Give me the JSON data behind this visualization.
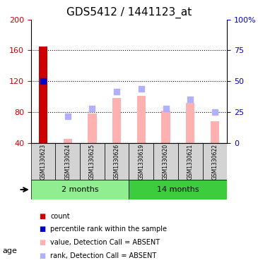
{
  "title": "GDS5412 / 1441123_at",
  "samples": [
    "GSM1330623",
    "GSM1330624",
    "GSM1330625",
    "GSM1330626",
    "GSM1330619",
    "GSM1330620",
    "GSM1330621",
    "GSM1330622"
  ],
  "groups": [
    {
      "label": "2 months",
      "indices": [
        0,
        1,
        2,
        3
      ],
      "color": "#90ee90"
    },
    {
      "label": "14 months",
      "indices": [
        4,
        5,
        6,
        7
      ],
      "color": "#3dcc3d"
    }
  ],
  "count_values": [
    165,
    0,
    0,
    0,
    0,
    0,
    0,
    0
  ],
  "count_color": "#cc0000",
  "percentile_values": [
    120,
    0,
    0,
    0,
    0,
    0,
    0,
    0
  ],
  "percentile_color": "#0000cc",
  "absent_value_bars": [
    0,
    46,
    78,
    98,
    101,
    82,
    92,
    68
  ],
  "absent_value_color": "#ffb0b0",
  "absent_rank_bars": [
    0,
    75,
    85,
    107,
    110,
    85,
    97,
    80
  ],
  "absent_rank_color": "#b0b0ff",
  "ylim_left": [
    40,
    200
  ],
  "ylim_right": [
    0,
    100
  ],
  "yticks_left": [
    40,
    80,
    120,
    160,
    200
  ],
  "yticks_right": [
    0,
    25,
    50,
    75,
    100
  ],
  "yticklabels_right": [
    "0",
    "25",
    "50",
    "75",
    "100%"
  ],
  "bar_bottom": 40,
  "grid_color": "#000000",
  "grid_linestyle": "dotted",
  "age_label": "age",
  "legend_items": [
    {
      "color": "#cc0000",
      "label": "count"
    },
    {
      "color": "#0000cc",
      "label": "percentile rank within the sample"
    },
    {
      "color": "#ffb0b0",
      "label": "value, Detection Call = ABSENT"
    },
    {
      "color": "#b0b0ff",
      "label": "rank, Detection Call = ABSENT"
    }
  ],
  "bg_color": "#d3d3d3",
  "plot_bg": "#ffffff"
}
